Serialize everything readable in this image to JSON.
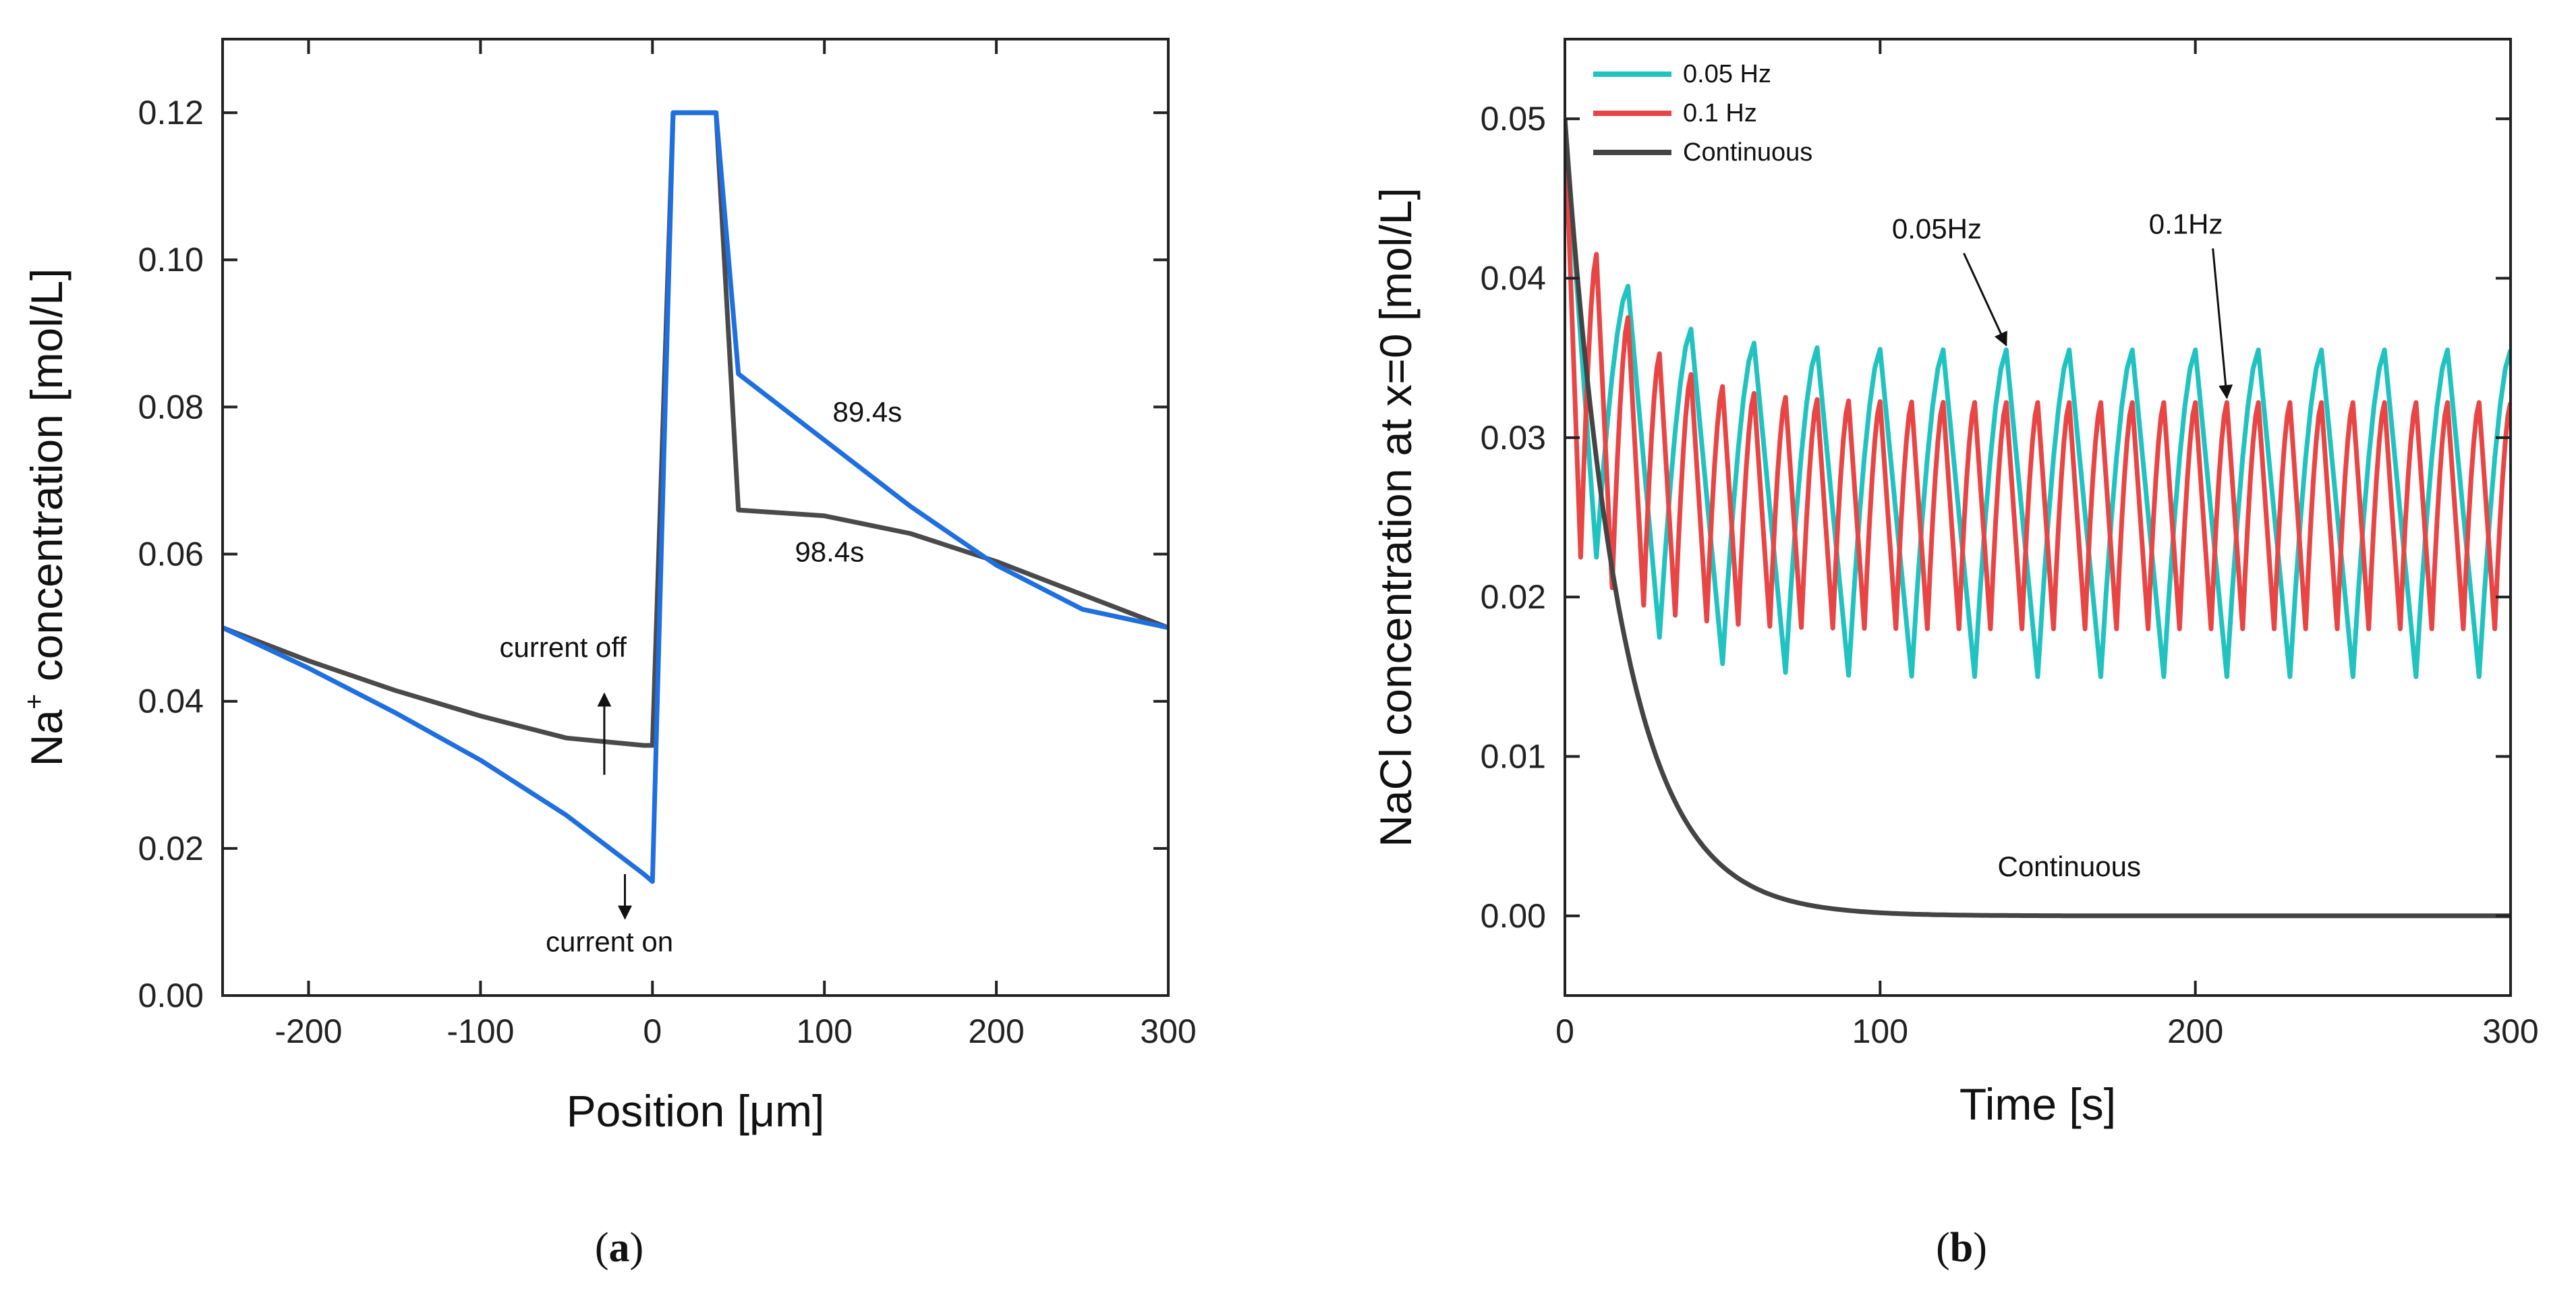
{
  "chart_data": [
    {
      "type": "line",
      "panel": "a",
      "xlabel": "Position [μm]",
      "ylabel_parts": [
        "Na",
        "+",
        " concentration [mol/L]"
      ],
      "xlim": [
        -250,
        300
      ],
      "ylim": [
        0,
        0.13
      ],
      "xticks": [
        -200,
        -100,
        0,
        100,
        200,
        300
      ],
      "yticks": [
        0.0,
        0.02,
        0.04,
        0.06,
        0.08,
        0.1,
        0.12
      ],
      "series": [
        {
          "name": "89.4s",
          "color": "#1f6fe0",
          "points": [
            [
              -250,
              0.05
            ],
            [
              -200,
              0.0445
            ],
            [
              -150,
              0.0385
            ],
            [
              -100,
              0.032
            ],
            [
              -50,
              0.0245
            ],
            [
              -5,
              0.0165
            ],
            [
              0,
              0.0155
            ],
            [
              12,
              0.12
            ],
            [
              37,
              0.12
            ],
            [
              50,
              0.0845
            ],
            [
              100,
              0.0755
            ],
            [
              150,
              0.0665
            ],
            [
              200,
              0.0585
            ],
            [
              250,
              0.0525
            ],
            [
              300,
              0.05
            ]
          ]
        },
        {
          "name": "98.4s",
          "color": "#4a4a4a",
          "points": [
            [
              -250,
              0.05
            ],
            [
              -200,
              0.0455
            ],
            [
              -150,
              0.0415
            ],
            [
              -100,
              0.038
            ],
            [
              -50,
              0.035
            ],
            [
              -5,
              0.034
            ],
            [
              0,
              0.034
            ],
            [
              12,
              0.12
            ],
            [
              37,
              0.12
            ],
            [
              50,
              0.066
            ],
            [
              100,
              0.0652
            ],
            [
              150,
              0.0628
            ],
            [
              200,
              0.059
            ],
            [
              250,
              0.0545
            ],
            [
              300,
              0.05
            ]
          ]
        }
      ],
      "annotations": [
        {
          "text": "89.4s",
          "x": 125,
          "y": 0.078
        },
        {
          "text": "98.4s",
          "x": 103,
          "y": 0.059
        },
        {
          "text": "current off",
          "x": -52,
          "y": 0.046
        },
        {
          "text": "current on",
          "x": -25,
          "y": 0.006
        }
      ],
      "arrows": [
        {
          "x": -28,
          "y_from": 0.03,
          "y_to": 0.041
        },
        {
          "x": -16,
          "y_from": 0.0165,
          "y_to": 0.0105
        }
      ],
      "caption": "a"
    },
    {
      "type": "line",
      "panel": "b",
      "xlabel": "Time [s]",
      "ylabel": "NaCl concentration at x=0 [mol/L]",
      "xlim": [
        0,
        300
      ],
      "ylim": [
        -0.005,
        0.055
      ],
      "xticks": [
        0,
        100,
        200,
        300
      ],
      "yticks": [
        0.0,
        0.01,
        0.02,
        0.03,
        0.04,
        0.05
      ],
      "legend_position": "top-left",
      "series": [
        {
          "name": "0.05 Hz",
          "color": "#20c3c0",
          "kind": "sawtooth",
          "period": 20,
          "charge_time": 10,
          "first_peak": 0.0395,
          "steady_low": 0.015,
          "steady_high": 0.0355
        },
        {
          "name": "0.1 Hz",
          "color": "#e84545",
          "kind": "sawtooth",
          "period": 10,
          "charge_time": 5,
          "first_peak": 0.0415,
          "steady_low": 0.018,
          "steady_high": 0.0322
        },
        {
          "name": "Continuous",
          "color": "#444444",
          "kind": "decay",
          "start": 0.05,
          "tau": 18
        }
      ],
      "annotations": [
        {
          "text": "0.05Hz",
          "x": 118,
          "y": 0.0425,
          "arrow_to": [
            140,
            0.0358
          ]
        },
        {
          "text": "0.1Hz",
          "x": 197,
          "y": 0.0428,
          "arrow_to": [
            210,
            0.0325
          ]
        },
        {
          "text": "Continuous",
          "x": 160,
          "y": 0.0025
        }
      ],
      "caption": "b"
    }
  ]
}
